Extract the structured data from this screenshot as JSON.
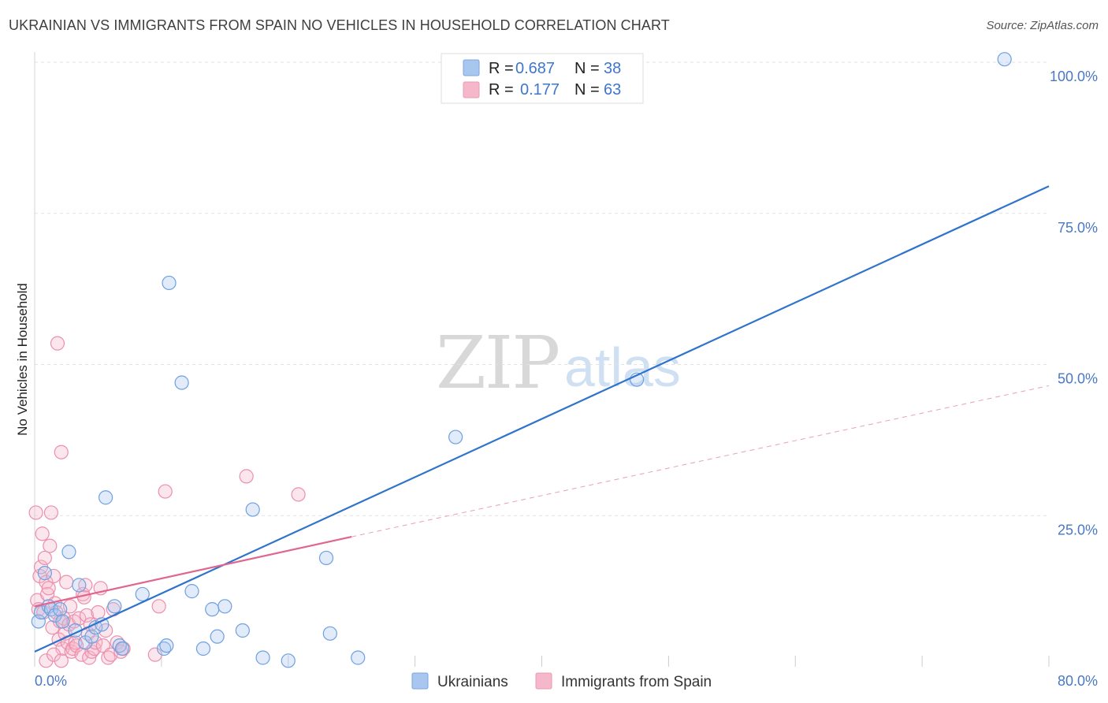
{
  "title": "UKRAINIAN VS IMMIGRANTS FROM SPAIN NO VEHICLES IN HOUSEHOLD CORRELATION CHART",
  "source": "Source: ZipAtlas.com",
  "watermark": {
    "zip": "ZIP",
    "atlas": "atlas"
  },
  "legend": {
    "r_label": "R =",
    "n_label": "N =",
    "rows": [
      {
        "r": "0.687",
        "n": "38",
        "color": "#a9c6ee"
      },
      {
        "r": "0.177",
        "n": "63",
        "color": "#f5b8cb"
      }
    ]
  },
  "bottom_legend": [
    {
      "label": "Ukrainians",
      "color": "#a9c6ee"
    },
    {
      "label": "Immigrants from Spain",
      "color": "#f5b8cb"
    }
  ],
  "chart_data": {
    "type": "scatter",
    "title": "UKRAINIAN VS IMMIGRANTS FROM SPAIN NO VEHICLES IN HOUSEHOLD CORRELATION CHART",
    "xlabel": "",
    "ylabel": "No Vehicles in Household",
    "xlim": [
      0,
      80
    ],
    "ylim": [
      0,
      100
    ],
    "x_tick_labels": [
      {
        "value": 0,
        "label": "0.0%"
      },
      {
        "value": 80,
        "label": "80.0%"
      }
    ],
    "y_tick_labels": [
      {
        "value": 25,
        "label": "25.0%"
      },
      {
        "value": 50,
        "label": "50.0%"
      },
      {
        "value": 75,
        "label": "75.0%"
      },
      {
        "value": 100,
        "label": "100.0%"
      }
    ],
    "series": [
      {
        "name": "Ukrainians",
        "color": "#6fa0e0",
        "points": [
          [
            0.3,
            7.5
          ],
          [
            0.5,
            9
          ],
          [
            0.8,
            15.5
          ],
          [
            1.1,
            10
          ],
          [
            1.3,
            9.5
          ],
          [
            1.6,
            8.5
          ],
          [
            2.0,
            9.5
          ],
          [
            2.2,
            7.5
          ],
          [
            2.7,
            19
          ],
          [
            3.2,
            6
          ],
          [
            3.5,
            13.5
          ],
          [
            4.0,
            4
          ],
          [
            4.5,
            5
          ],
          [
            4.8,
            6.5
          ],
          [
            5.3,
            7
          ],
          [
            5.6,
            28
          ],
          [
            6.3,
            10
          ],
          [
            6.7,
            3.5
          ],
          [
            6.9,
            3
          ],
          [
            8.5,
            12
          ],
          [
            10.2,
            3
          ],
          [
            10.4,
            3.5
          ],
          [
            10.6,
            63.5
          ],
          [
            11.6,
            47
          ],
          [
            12.4,
            12.5
          ],
          [
            13.3,
            3
          ],
          [
            14.0,
            9.5
          ],
          [
            14.4,
            5
          ],
          [
            15.0,
            10
          ],
          [
            16.4,
            6
          ],
          [
            17.2,
            26
          ],
          [
            18.0,
            1.5
          ],
          [
            20.0,
            1
          ],
          [
            23.0,
            18
          ],
          [
            23.3,
            5.5
          ],
          [
            25.5,
            1.5
          ],
          [
            33.2,
            38
          ],
          [
            47.5,
            47.5
          ],
          [
            76.5,
            100.5
          ]
        ],
        "trend": {
          "x": [
            0,
            80
          ],
          "y": [
            2.5,
            79.5
          ]
        }
      },
      {
        "name": "Immigrants from Spain",
        "color": "#ec8fad",
        "points": [
          [
            0.1,
            25.5
          ],
          [
            0.2,
            11
          ],
          [
            0.3,
            9.5
          ],
          [
            0.4,
            15
          ],
          [
            0.5,
            16.5
          ],
          [
            0.6,
            22
          ],
          [
            0.7,
            9
          ],
          [
            0.8,
            18
          ],
          [
            0.9,
            14
          ],
          [
            1.0,
            12
          ],
          [
            1.1,
            13
          ],
          [
            1.2,
            20
          ],
          [
            1.3,
            25.5
          ],
          [
            1.4,
            6.5
          ],
          [
            1.5,
            15
          ],
          [
            1.6,
            10.5
          ],
          [
            1.7,
            9
          ],
          [
            1.8,
            53.5
          ],
          [
            1.9,
            4.5
          ],
          [
            2.0,
            7.5
          ],
          [
            2.1,
            35.5
          ],
          [
            2.2,
            3
          ],
          [
            2.3,
            8
          ],
          [
            2.4,
            5.5
          ],
          [
            2.5,
            14
          ],
          [
            2.6,
            4
          ],
          [
            2.7,
            7
          ],
          [
            2.8,
            10
          ],
          [
            2.9,
            2.5
          ],
          [
            3.0,
            3
          ],
          [
            3.1,
            7.5
          ],
          [
            3.2,
            4
          ],
          [
            3.3,
            3.5
          ],
          [
            3.5,
            8
          ],
          [
            3.7,
            2
          ],
          [
            3.8,
            12
          ],
          [
            3.9,
            11.5
          ],
          [
            4.0,
            13.5
          ],
          [
            4.1,
            8.5
          ],
          [
            4.2,
            5.5
          ],
          [
            4.3,
            1.5
          ],
          [
            4.4,
            7
          ],
          [
            4.5,
            2.5
          ],
          [
            4.7,
            3
          ],
          [
            4.8,
            4
          ],
          [
            5.0,
            9
          ],
          [
            5.2,
            13
          ],
          [
            5.4,
            3.5
          ],
          [
            5.6,
            6
          ],
          [
            5.8,
            1.5
          ],
          [
            6.0,
            2
          ],
          [
            6.2,
            9.5
          ],
          [
            6.5,
            4
          ],
          [
            6.8,
            2.5
          ],
          [
            7.0,
            3
          ],
          [
            9.5,
            2
          ],
          [
            9.8,
            10
          ],
          [
            10.3,
            29
          ],
          [
            16.7,
            31.5
          ],
          [
            20.8,
            28.5
          ],
          [
            0.9,
            1
          ],
          [
            1.5,
            2
          ],
          [
            2.1,
            1
          ]
        ],
        "trend_solid": {
          "x": [
            0,
            25
          ],
          "y": [
            10,
            21.5
          ]
        },
        "trend_dashed": {
          "x": [
            25,
            80
          ],
          "y": [
            21.5,
            46.5
          ]
        }
      }
    ]
  }
}
